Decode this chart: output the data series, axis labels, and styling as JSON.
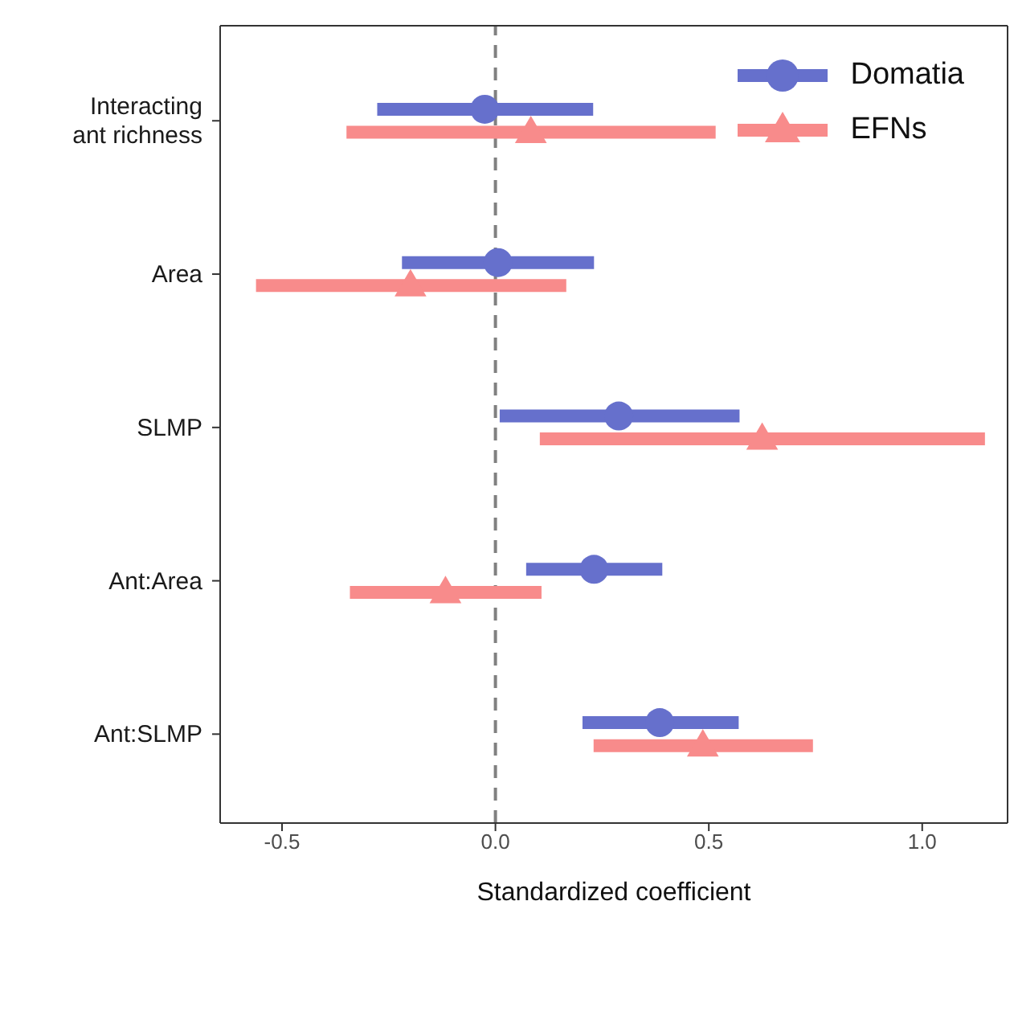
{
  "chart_data": {
    "type": "scatter",
    "orientation": "horizontal",
    "xlabel": "Standardized coefficient",
    "categories": [
      "Interacting ant richness",
      "Area",
      "SLMP",
      "Ant:Area",
      "Ant:SLMP"
    ],
    "series": [
      {
        "name": "Domatia",
        "color": "#6670cc",
        "marker": "circle",
        "values": [
          -0.025,
          0.006,
          0.289,
          0.231,
          0.385
        ],
        "errors": [
          [
            -0.277,
            0.229
          ],
          [
            -0.219,
            0.231
          ],
          [
            0.01,
            0.572
          ],
          [
            0.072,
            0.391
          ],
          [
            0.204,
            0.57
          ]
        ]
      },
      {
        "name": "EFNs",
        "color": "#f88b8b",
        "marker": "triangle",
        "values": [
          0.083,
          -0.199,
          0.625,
          -0.117,
          0.486
        ],
        "errors": [
          [
            -0.349,
            0.516
          ],
          [
            -0.561,
            0.166
          ],
          [
            0.104,
            1.147
          ],
          [
            -0.341,
            0.108
          ],
          [
            0.23,
            0.744
          ]
        ]
      }
    ],
    "xlim": [
      -0.645,
      1.2
    ],
    "xticks": [
      {
        "value": -0.5,
        "label": "-0.5"
      },
      {
        "value": 0,
        "label": "0.0"
      },
      {
        "value": 0.5,
        "label": "0.5"
      },
      {
        "value": 1,
        "label": "1.0"
      }
    ],
    "ref_lines": [
      {
        "axis": "x",
        "value": 0,
        "color": "#808080",
        "line_style": "dashed"
      }
    ],
    "legend": "top right",
    "grid": false
  }
}
